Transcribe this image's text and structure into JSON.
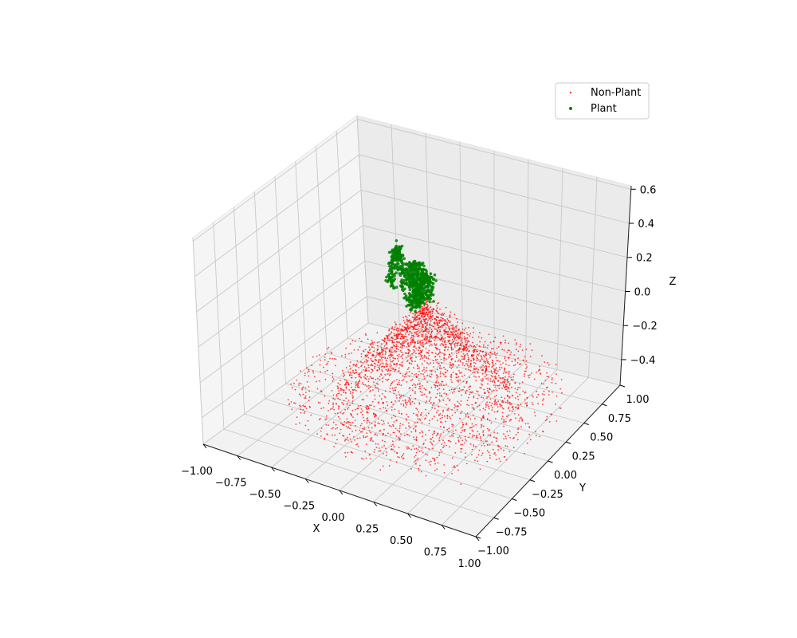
{
  "chart_data": {
    "type": "scatter",
    "xlabel": "X",
    "ylabel": "Y",
    "zlabel": "Z",
    "xlim": [
      -1.0,
      1.0
    ],
    "ylim": [
      -1.0,
      1.0
    ],
    "zlim": [
      -0.55,
      0.62
    ],
    "x_ticks": [
      "−1.00",
      "−0.75",
      "−0.50",
      "−0.25",
      "0.00",
      "0.25",
      "0.50",
      "0.75",
      "1.00"
    ],
    "y_ticks": [
      "−1.00",
      "−0.75",
      "−0.50",
      "−0.25",
      "0.00",
      "0.25",
      "0.50",
      "0.75",
      "1.00"
    ],
    "z_ticks": [
      "−0.4",
      "−0.2",
      "0.0",
      "0.2",
      "0.4",
      "0.6"
    ],
    "grid": true,
    "legend_position": "top-right",
    "series": [
      {
        "name": "Non-Plant",
        "color": "#ff0000",
        "marker_size": "small",
        "distribution": "cone-shaped cloud, dense near center and rising toward peak at z≈0.1; sparse spread across ground plane z≈-0.45 to -0.35",
        "approx_points": 3000
      },
      {
        "name": "Plant",
        "color": "#008000",
        "marker_size": "medium",
        "distribution": "small plant cluster near x≈0, y≈0, z from 0.1 to 0.45",
        "approx_points": 700
      }
    ]
  }
}
